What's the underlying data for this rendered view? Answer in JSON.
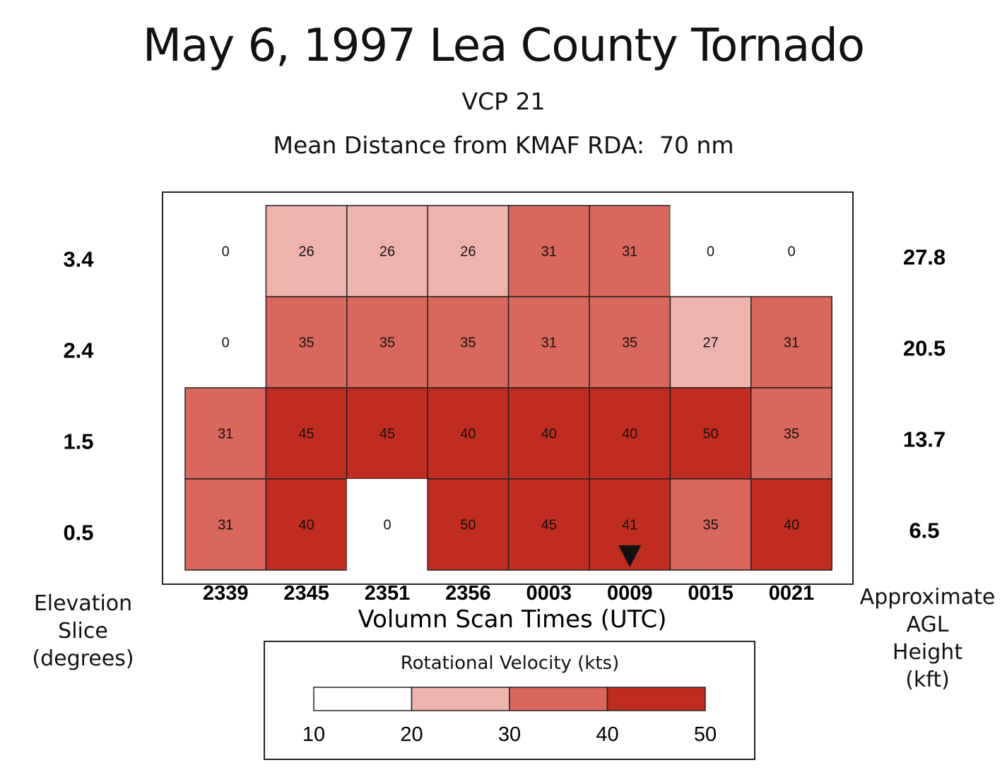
{
  "title": "May 6, 1997 Lea County Tornado",
  "subtitle": "VCP 21",
  "subtitle2": "Mean Distance from KMAF RDA:  70 nm",
  "left_label": [
    "Elevation",
    "Slice",
    "(degrees)"
  ],
  "right_label": [
    "Approximate",
    "AGL",
    "Height",
    "(kft)"
  ],
  "colors": {
    "bin_10_20": "#ffffff",
    "bin_20_30": "#efb3ae",
    "bin_30_40": "#d9675d",
    "bin_40_50": "#c12c20",
    "cell_border": "#222222",
    "marker": "#111111"
  },
  "chart_data": {
    "type": "heatmap",
    "title": "May 6, 1997 Lea County Tornado",
    "xlabel": "Volumn Scan Times (UTC)",
    "ylabel": "Elevation Slice (degrees)",
    "secondary_ylabel": "Approximate AGL Height (kft)",
    "x": [
      "2339",
      "2345",
      "2351",
      "2356",
      "0003",
      "0009",
      "0015",
      "0021"
    ],
    "y": [
      "3.4",
      "2.4",
      "1.5",
      "0.5"
    ],
    "y_secondary": [
      "27.8",
      "20.5",
      "13.7",
      "6.5"
    ],
    "values": [
      [
        0,
        26,
        26,
        26,
        31,
        31,
        0,
        0
      ],
      [
        0,
        35,
        35,
        35,
        31,
        35,
        27,
        31
      ],
      [
        31,
        45,
        45,
        40,
        40,
        40,
        50,
        35
      ],
      [
        31,
        40,
        0,
        50,
        45,
        41,
        35,
        40
      ]
    ],
    "tornado_marker": {
      "x": "0009",
      "y": "0.5",
      "shape": "downward triangle"
    },
    "legend": {
      "title": "Rotational Velocity (kts)",
      "bounds": [
        10,
        20,
        30,
        40,
        50
      ]
    }
  }
}
